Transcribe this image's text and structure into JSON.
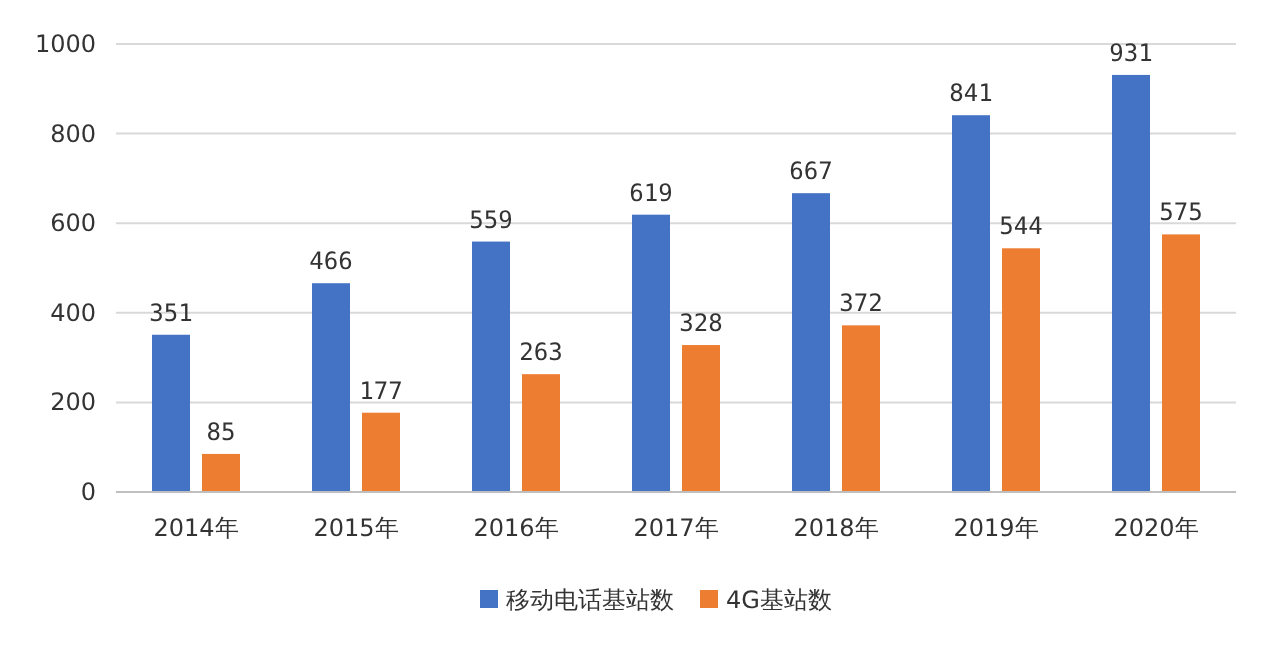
{
  "chart_data": {
    "type": "bar",
    "categories": [
      "2014年",
      "2015年",
      "2016年",
      "2017年",
      "2018年",
      "2019年",
      "2020年"
    ],
    "series": [
      {
        "name": "移动电话基站数",
        "color": "#4472c4",
        "values": [
          351,
          466,
          559,
          619,
          667,
          841,
          931
        ]
      },
      {
        "name": "4G基站数",
        "color": "#ed7d31",
        "values": [
          85,
          177,
          263,
          328,
          372,
          544,
          575
        ]
      }
    ],
    "ylim": [
      0,
      1000
    ],
    "yticks": [
      0,
      200,
      400,
      600,
      800,
      1000
    ],
    "grid": "y",
    "legend": "bottom",
    "data_labels": true
  }
}
